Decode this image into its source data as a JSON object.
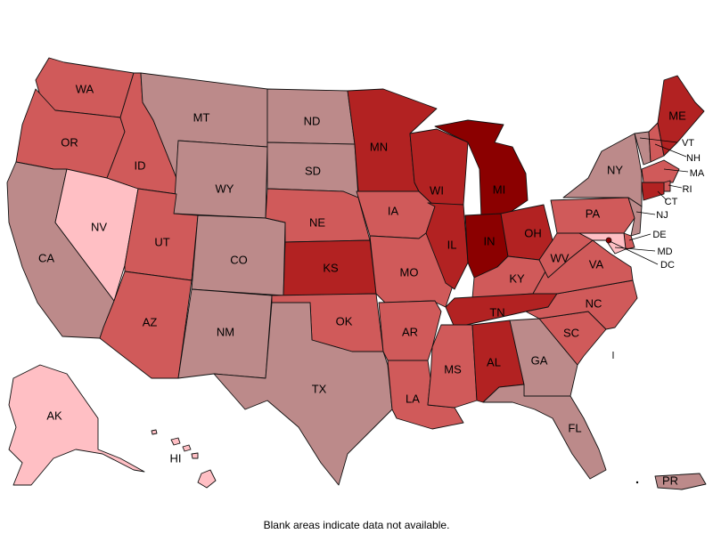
{
  "colors": {
    "lightest": "#ffbfc4",
    "gray": "#bc8a8a",
    "medium": "#d05a5a",
    "dark": "#b22222",
    "darkest": "#8b0000"
  },
  "states": {
    "WA": {
      "label": "WA",
      "shade": "medium"
    },
    "OR": {
      "label": "OR",
      "shade": "medium"
    },
    "CA": {
      "label": "CA",
      "shade": "gray"
    },
    "NV": {
      "label": "NV",
      "shade": "lightest"
    },
    "ID": {
      "label": "ID",
      "shade": "medium"
    },
    "MT": {
      "label": "MT",
      "shade": "gray"
    },
    "WY": {
      "label": "WY",
      "shade": "gray"
    },
    "UT": {
      "label": "UT",
      "shade": "medium"
    },
    "AZ": {
      "label": "AZ",
      "shade": "medium"
    },
    "CO": {
      "label": "CO",
      "shade": "gray"
    },
    "NM": {
      "label": "NM",
      "shade": "gray"
    },
    "ND": {
      "label": "ND",
      "shade": "gray"
    },
    "SD": {
      "label": "SD",
      "shade": "gray"
    },
    "NE": {
      "label": "NE",
      "shade": "medium"
    },
    "KS": {
      "label": "KS",
      "shade": "dark"
    },
    "OK": {
      "label": "OK",
      "shade": "medium"
    },
    "TX": {
      "label": "TX",
      "shade": "gray"
    },
    "MN": {
      "label": "MN",
      "shade": "dark"
    },
    "IA": {
      "label": "IA",
      "shade": "medium"
    },
    "MO": {
      "label": "MO",
      "shade": "medium"
    },
    "AR": {
      "label": "AR",
      "shade": "medium"
    },
    "LA": {
      "label": "LA",
      "shade": "medium"
    },
    "WI": {
      "label": "WI",
      "shade": "dark"
    },
    "IL": {
      "label": "IL",
      "shade": "dark"
    },
    "MI": {
      "label": "MI",
      "shade": "darkest"
    },
    "IN": {
      "label": "IN",
      "shade": "darkest"
    },
    "OH": {
      "label": "OH",
      "shade": "dark"
    },
    "KY": {
      "label": "KY",
      "shade": "medium"
    },
    "TN": {
      "label": "TN",
      "shade": "dark"
    },
    "MS": {
      "label": "MS",
      "shade": "medium"
    },
    "AL": {
      "label": "AL",
      "shade": "dark"
    },
    "GA": {
      "label": "GA",
      "shade": "gray"
    },
    "FL": {
      "label": "FL",
      "shade": "gray"
    },
    "SC": {
      "label": "SC",
      "shade": "medium"
    },
    "NC": {
      "label": "NC",
      "shade": "medium"
    },
    "VA": {
      "label": "VA",
      "shade": "medium"
    },
    "WV": {
      "label": "WV",
      "shade": "medium"
    },
    "PA": {
      "label": "PA",
      "shade": "medium"
    },
    "NY": {
      "label": "NY",
      "shade": "gray"
    },
    "VT": {
      "label": "VT",
      "shade": "gray"
    },
    "NH": {
      "label": "NH",
      "shade": "medium"
    },
    "ME": {
      "label": "ME",
      "shade": "dark"
    },
    "MA": {
      "label": "MA",
      "shade": "medium"
    },
    "RI": {
      "label": "RI",
      "shade": "medium"
    },
    "CT": {
      "label": "CT",
      "shade": "dark"
    },
    "NJ": {
      "label": "NJ",
      "shade": "gray"
    },
    "DE": {
      "label": "DE",
      "shade": "medium"
    },
    "MD": {
      "label": "MD",
      "shade": "lightest"
    },
    "DC": {
      "label": "DC",
      "shade": "darkest"
    },
    "AK": {
      "label": "AK",
      "shade": "lightest"
    },
    "HI": {
      "label": "HI",
      "shade": "lightest"
    },
    "PR": {
      "label": "PR",
      "shade": "gray"
    }
  },
  "footnote": "Blank areas indicate data not available."
}
